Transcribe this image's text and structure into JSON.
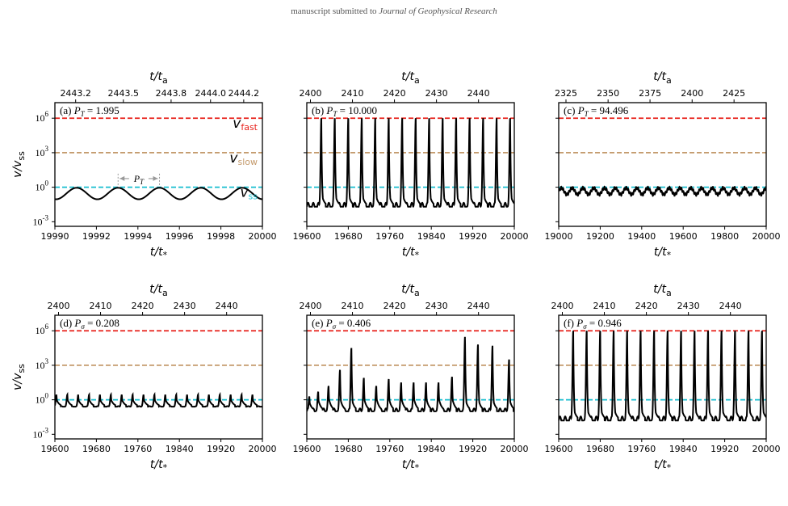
{
  "header": {
    "prefix": "manuscript submitted to ",
    "journal": "Journal of Geophysical Research"
  },
  "colors": {
    "fast": "#e8211b",
    "slow": "#c49a6c",
    "ss": "#17becf",
    "signal": "#000000"
  },
  "chart_data": [
    {
      "id": "a",
      "type": "line",
      "panel_label": "(a) P_T = 1.995",
      "label_prefix": "(a) ",
      "param_symbol": "P",
      "param_sub": "T",
      "param_value": " = 1.995",
      "xlabel": "t/t*",
      "x2label": "t/ta",
      "ylabel": "v/vss",
      "ylog": true,
      "ylim": [
        0.001,
        100000000
      ],
      "xlim": [
        19990,
        20000
      ],
      "xticks": [
        "19990",
        "19992",
        "19994",
        "19996",
        "19998",
        "20000"
      ],
      "xtick_values": [
        19990,
        19992,
        19994,
        19996,
        19998,
        20000
      ],
      "x2ticks": [
        "2443.2",
        "2443.5",
        "2443.8",
        "2444.0",
        "2444.2"
      ],
      "x2tick_values": [
        19991.0,
        19993.3,
        19995.6,
        19997.5,
        19999.1
      ],
      "yticks": [
        "10^-3",
        "10^0",
        "10^3",
        "10^6"
      ],
      "ref_lines": [
        {
          "name": "v_fast",
          "y": 1000000,
          "color": "#e8211b",
          "label": "vfast"
        },
        {
          "name": "v_slow",
          "y": 1000,
          "color": "#c49a6c",
          "label": "vslow"
        },
        {
          "name": "v_ss",
          "y": 1,
          "color": "#17becf",
          "label": "vss"
        }
      ],
      "annotation": "PT",
      "series": [
        {
          "kind": "sine",
          "period": 1.995,
          "log_center": -0.55,
          "log_amp": 0.5,
          "phase": 19991.05
        }
      ]
    },
    {
      "id": "b",
      "type": "line",
      "panel_label": "(b) P_T = 10.000",
      "label_prefix": "(b) ",
      "param_symbol": "P",
      "param_sub": "T",
      "param_value": " = 10.000",
      "xlabel": "t/t*",
      "x2label": "t/ta",
      "ylabel": "",
      "ylog": true,
      "ylim": [
        0.001,
        100000000
      ],
      "xlim": [
        19600,
        20000
      ],
      "xticks": [
        "19600",
        "19680",
        "19760",
        "19840",
        "19920",
        "20000"
      ],
      "xtick_values": [
        19600,
        19680,
        19760,
        19840,
        19920,
        20000
      ],
      "x2ticks": [
        "2400",
        "2410",
        "2420",
        "2430",
        "2440"
      ],
      "x2tick_values": [
        19607,
        19688,
        19769,
        19850,
        19931
      ],
      "ref_lines": [
        {
          "name": "v_fast",
          "y": 1000000,
          "color": "#e8211b"
        },
        {
          "name": "v_slow",
          "y": 1000,
          "color": "#c49a6c"
        },
        {
          "name": "v_ss",
          "y": 1,
          "color": "#17becf"
        }
      ],
      "series": [
        {
          "kind": "spikes",
          "spike_times": [
            19628,
            19654,
            19680,
            19706,
            19732,
            19758,
            19784,
            19810,
            19836,
            19862,
            19888,
            19914,
            19940,
            19966,
            19992
          ],
          "spike_peak_log": 6.0,
          "base_log": -1.7,
          "wiggle_period": 10,
          "wiggle_amp": 0.35
        }
      ]
    },
    {
      "id": "c",
      "type": "line",
      "panel_label": "(c) P_T = 94.496",
      "label_prefix": "(c) ",
      "param_symbol": "P",
      "param_sub": "T",
      "param_value": " = 94.496",
      "xlabel": "t/t*",
      "x2label": "t/ta",
      "ylabel": "",
      "ylog": true,
      "ylim": [
        0.001,
        100000000
      ],
      "xlim": [
        19000,
        20000
      ],
      "xticks": [
        "19000",
        "19200",
        "19400",
        "19600",
        "19800",
        "20000"
      ],
      "xtick_values": [
        19000,
        19200,
        19400,
        19600,
        19800,
        20000
      ],
      "x2ticks": [
        "2325",
        "2350",
        "2375",
        "2400",
        "2425"
      ],
      "x2tick_values": [
        19035,
        19238,
        19440,
        19643,
        19845
      ],
      "ref_lines": [
        {
          "name": "v_fast",
          "y": 1000000,
          "color": "#e8211b"
        },
        {
          "name": "v_slow",
          "y": 1000,
          "color": "#c49a6c"
        },
        {
          "name": "v_ss",
          "y": 1,
          "color": "#17becf"
        }
      ],
      "series": [
        {
          "kind": "ripple",
          "period": 94.5,
          "log_center": -0.35,
          "log_amp": 0.28,
          "ripple_period": 10,
          "ripple_amp": 0.12
        }
      ]
    },
    {
      "id": "d",
      "type": "line",
      "panel_label": "(d) P_sigma = 0.208",
      "label_prefix": "(d) ",
      "param_symbol": "P",
      "param_sub": "σ",
      "param_value": " = 0.208",
      "xlabel": "t/t*",
      "x2label": "t/ta",
      "ylabel": "v/vss",
      "ylog": true,
      "ylim": [
        0.001,
        100000000
      ],
      "xlim": [
        19600,
        20000
      ],
      "xticks": [
        "19600",
        "19680",
        "19760",
        "19840",
        "19920",
        "20000"
      ],
      "xtick_values": [
        19600,
        19680,
        19760,
        19840,
        19920,
        20000
      ],
      "x2ticks": [
        "2400",
        "2410",
        "2420",
        "2430",
        "2440"
      ],
      "x2tick_values": [
        19607,
        19688,
        19769,
        19850,
        19931
      ],
      "yticks": [
        "10^-3",
        "10^0",
        "10^3",
        "10^6"
      ],
      "ref_lines": [
        {
          "name": "v_fast",
          "y": 1000000,
          "color": "#e8211b"
        },
        {
          "name": "v_slow",
          "y": 1000,
          "color": "#c49a6c"
        },
        {
          "name": "v_ss",
          "y": 1,
          "color": "#17becf"
        }
      ],
      "series": [
        {
          "kind": "spikes",
          "spike_times": [
            19603,
            19624,
            19645,
            19666,
            19687,
            19708,
            19729,
            19750,
            19771,
            19792,
            19813,
            19834,
            19855,
            19876,
            19897,
            19918,
            19939,
            19960,
            19981
          ],
          "spike_peak_log": 0.45,
          "base_log": -0.6,
          "wiggle_period": 10,
          "wiggle_amp": 0.05
        }
      ]
    },
    {
      "id": "e",
      "type": "line",
      "panel_label": "(e) P_sigma = 0.406",
      "label_prefix": "(e) ",
      "param_symbol": "P",
      "param_sub": "σ",
      "param_value": " = 0.406",
      "xlabel": "t/t*",
      "x2label": "t/ta",
      "ylabel": "",
      "ylog": true,
      "ylim": [
        0.001,
        100000000
      ],
      "xlim": [
        19600,
        20000
      ],
      "xticks": [
        "19600",
        "19680",
        "19760",
        "19840",
        "19920",
        "20000"
      ],
      "xtick_values": [
        19600,
        19680,
        19760,
        19840,
        19920,
        20000
      ],
      "x2ticks": [
        "2400",
        "2410",
        "2420",
        "2430",
        "2440"
      ],
      "x2tick_values": [
        19607,
        19688,
        19769,
        19850,
        19931
      ],
      "ref_lines": [
        {
          "name": "v_fast",
          "y": 1000000,
          "color": "#e8211b"
        },
        {
          "name": "v_slow",
          "y": 1000,
          "color": "#c49a6c"
        },
        {
          "name": "v_ss",
          "y": 1,
          "color": "#17becf"
        }
      ],
      "series": [
        {
          "kind": "variable_spikes",
          "spike_times": [
            19605,
            19622,
            19642,
            19664,
            19686,
            19710,
            19734,
            19758,
            19782,
            19806,
            19830,
            19854,
            19880,
            19905,
            19930,
            19958,
            19990
          ],
          "spike_peaks_log": [
            0.3,
            0.7,
            1.2,
            2.6,
            4.5,
            1.9,
            1.2,
            1.8,
            1.5,
            1.5,
            1.5,
            1.5,
            2.0,
            5.5,
            4.8,
            4.7,
            3.5
          ],
          "base_log": -1.0,
          "wiggle_period": 10,
          "wiggle_amp": 0.25
        }
      ]
    },
    {
      "id": "f",
      "type": "line",
      "panel_label": "(f) P_sigma = 0.946",
      "label_prefix": "(f) ",
      "param_symbol": "P",
      "param_sub": "σ",
      "param_value": " = 0.946",
      "xlabel": "t/t*",
      "x2label": "t/ta",
      "ylabel": "",
      "ylog": true,
      "ylim": [
        0.001,
        100000000
      ],
      "xlim": [
        19600,
        20000
      ],
      "xticks": [
        "19600",
        "19680",
        "19760",
        "19840",
        "19920",
        "20000"
      ],
      "xtick_values": [
        19600,
        19680,
        19760,
        19840,
        19920,
        20000
      ],
      "x2ticks": [
        "2400",
        "2410",
        "2420",
        "2430",
        "2440"
      ],
      "x2tick_values": [
        19607,
        19688,
        19769,
        19850,
        19931
      ],
      "ref_lines": [
        {
          "name": "v_fast",
          "y": 1000000,
          "color": "#e8211b"
        },
        {
          "name": "v_slow",
          "y": 1000,
          "color": "#c49a6c"
        },
        {
          "name": "v_ss",
          "y": 1,
          "color": "#17becf"
        }
      ],
      "series": [
        {
          "kind": "spikes",
          "spike_times": [
            19628,
            19654,
            19680,
            19706,
            19732,
            19758,
            19784,
            19810,
            19836,
            19862,
            19888,
            19914,
            19940,
            19966,
            19992
          ],
          "spike_peak_log": 6.0,
          "base_log": -1.8,
          "wiggle_period": 10,
          "wiggle_amp": 0.35
        }
      ]
    }
  ]
}
